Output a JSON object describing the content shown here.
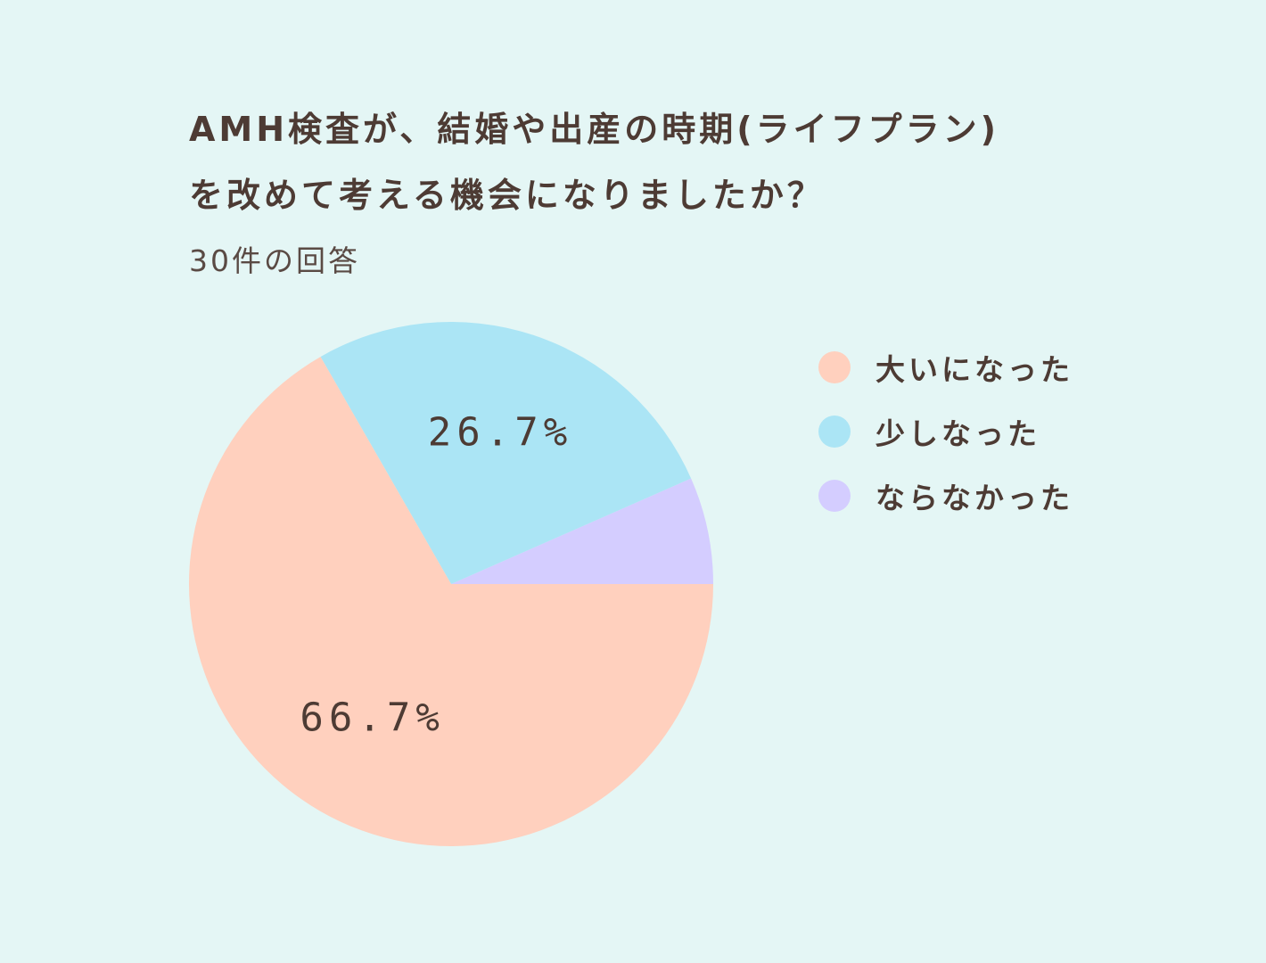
{
  "colors": {
    "background": "#e4f6f5",
    "text": "#4d3b34"
  },
  "chart_data": {
    "type": "pie",
    "title_line1": "AMH検査が、結婚や出産の時期(ライフプラン)",
    "title_line2": "を改めて考える機会になりましたか？",
    "subtitle": "30件の回答",
    "legend_position": "right",
    "start_angle_deg": 0,
    "slices": [
      {
        "label": "ならなかった",
        "value": 6.6,
        "color": "#d4cdff"
      },
      {
        "label": "少しなった",
        "value": 26.7,
        "value_label": "26.7%",
        "color": "#abe5f5"
      },
      {
        "label": "大いになった",
        "value": 66.7,
        "value_label": "66.7%",
        "color": "#ffd0be"
      }
    ],
    "legend_order": [
      "大いになった",
      "少しなった",
      "ならなかった"
    ]
  }
}
